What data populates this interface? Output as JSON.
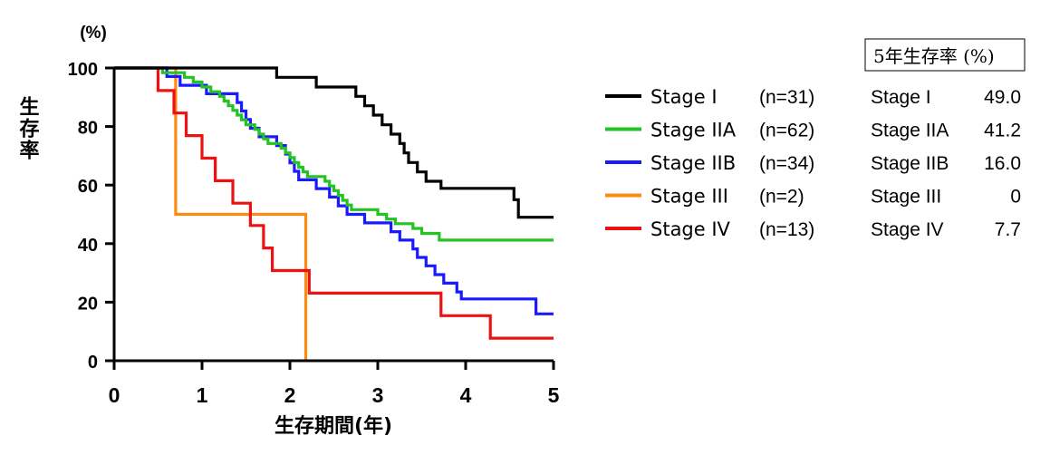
{
  "chart_data": {
    "type": "line",
    "step": true,
    "y_unit_label": "(%)",
    "ylabel": "生存率",
    "xlabel": "生存期間(年)",
    "xlim": [
      0,
      5
    ],
    "ylim": [
      0,
      100
    ],
    "x_ticks": [
      0,
      1,
      2,
      3,
      4,
      5
    ],
    "y_ticks": [
      0,
      20,
      40,
      60,
      80,
      100
    ],
    "grid": false,
    "legend_position": "right",
    "series": [
      {
        "name": "Stage I",
        "n_label": "(n=31)",
        "color": "#000000",
        "points": [
          [
            0,
            100
          ],
          [
            1.85,
            100
          ],
          [
            1.85,
            96.8
          ],
          [
            2.3,
            96.8
          ],
          [
            2.3,
            93.5
          ],
          [
            2.75,
            93.5
          ],
          [
            2.75,
            90.3
          ],
          [
            2.85,
            90.3
          ],
          [
            2.85,
            87.1
          ],
          [
            2.95,
            87.1
          ],
          [
            2.95,
            83.9
          ],
          [
            3.05,
            83.9
          ],
          [
            3.05,
            80.6
          ],
          [
            3.15,
            80.6
          ],
          [
            3.15,
            77.4
          ],
          [
            3.25,
            77.4
          ],
          [
            3.25,
            74.2
          ],
          [
            3.3,
            74.2
          ],
          [
            3.3,
            71.0
          ],
          [
            3.35,
            71.0
          ],
          [
            3.35,
            67.7
          ],
          [
            3.45,
            67.7
          ],
          [
            3.45,
            64.5
          ],
          [
            3.55,
            64.5
          ],
          [
            3.55,
            61.3
          ],
          [
            3.72,
            61.3
          ],
          [
            3.72,
            58.9
          ],
          [
            4.55,
            58.9
          ],
          [
            4.55,
            55.0
          ],
          [
            4.6,
            55.0
          ],
          [
            4.6,
            49.0
          ],
          [
            5.0,
            49.0
          ]
        ]
      },
      {
        "name": "Stage IIA",
        "n_label": "(n=62)",
        "color": "#22c322",
        "points": [
          [
            0,
            100
          ],
          [
            0.55,
            100
          ],
          [
            0.55,
            98.4
          ],
          [
            0.8,
            98.4
          ],
          [
            0.8,
            96.8
          ],
          [
            0.9,
            96.8
          ],
          [
            0.9,
            95.2
          ],
          [
            1.0,
            95.2
          ],
          [
            1.0,
            93.5
          ],
          [
            1.1,
            93.5
          ],
          [
            1.1,
            91.9
          ],
          [
            1.2,
            91.9
          ],
          [
            1.2,
            90.3
          ],
          [
            1.25,
            90.3
          ],
          [
            1.25,
            88.7
          ],
          [
            1.3,
            88.7
          ],
          [
            1.3,
            87.1
          ],
          [
            1.35,
            87.1
          ],
          [
            1.35,
            85.5
          ],
          [
            1.4,
            85.5
          ],
          [
            1.4,
            83.9
          ],
          [
            1.45,
            83.9
          ],
          [
            1.45,
            82.3
          ],
          [
            1.5,
            82.3
          ],
          [
            1.5,
            80.6
          ],
          [
            1.6,
            80.6
          ],
          [
            1.6,
            79.0
          ],
          [
            1.65,
            79.0
          ],
          [
            1.65,
            77.4
          ],
          [
            1.7,
            77.4
          ],
          [
            1.7,
            75.8
          ],
          [
            1.75,
            75.8
          ],
          [
            1.75,
            74.2
          ],
          [
            1.9,
            74.2
          ],
          [
            1.9,
            72.6
          ],
          [
            1.95,
            72.6
          ],
          [
            1.95,
            71.0
          ],
          [
            2.0,
            71.0
          ],
          [
            2.0,
            69.4
          ],
          [
            2.05,
            69.4
          ],
          [
            2.05,
            67.7
          ],
          [
            2.1,
            67.7
          ],
          [
            2.1,
            66.1
          ],
          [
            2.15,
            66.1
          ],
          [
            2.15,
            64.5
          ],
          [
            2.2,
            64.5
          ],
          [
            2.2,
            62.9
          ],
          [
            2.4,
            62.9
          ],
          [
            2.4,
            61.3
          ],
          [
            2.45,
            61.3
          ],
          [
            2.45,
            59.7
          ],
          [
            2.5,
            59.7
          ],
          [
            2.5,
            58.1
          ],
          [
            2.55,
            58.1
          ],
          [
            2.55,
            56.5
          ],
          [
            2.6,
            56.5
          ],
          [
            2.6,
            54.8
          ],
          [
            2.65,
            54.8
          ],
          [
            2.65,
            53.2
          ],
          [
            2.7,
            53.2
          ],
          [
            2.7,
            51.6
          ],
          [
            3.0,
            51.6
          ],
          [
            3.0,
            50.0
          ],
          [
            3.1,
            50.0
          ],
          [
            3.1,
            48.4
          ],
          [
            3.2,
            48.4
          ],
          [
            3.2,
            46.8
          ],
          [
            3.4,
            46.8
          ],
          [
            3.4,
            45.2
          ],
          [
            3.5,
            45.2
          ],
          [
            3.5,
            43.5
          ],
          [
            3.7,
            43.5
          ],
          [
            3.7,
            41.2
          ],
          [
            5.0,
            41.2
          ]
        ]
      },
      {
        "name": "Stage IIB",
        "n_label": "(n=34)",
        "color": "#1a1aff",
        "points": [
          [
            0,
            100
          ],
          [
            0.6,
            100
          ],
          [
            0.6,
            97.1
          ],
          [
            0.75,
            97.1
          ],
          [
            0.75,
            94.1
          ],
          [
            1.05,
            94.1
          ],
          [
            1.05,
            91.2
          ],
          [
            1.4,
            91.2
          ],
          [
            1.4,
            88.2
          ],
          [
            1.45,
            88.2
          ],
          [
            1.45,
            85.3
          ],
          [
            1.5,
            85.3
          ],
          [
            1.5,
            82.4
          ],
          [
            1.55,
            82.4
          ],
          [
            1.55,
            79.4
          ],
          [
            1.65,
            79.4
          ],
          [
            1.65,
            76.5
          ],
          [
            1.85,
            76.5
          ],
          [
            1.85,
            73.5
          ],
          [
            1.95,
            73.5
          ],
          [
            1.95,
            70.6
          ],
          [
            2.0,
            70.6
          ],
          [
            2.0,
            67.6
          ],
          [
            2.05,
            67.6
          ],
          [
            2.05,
            64.7
          ],
          [
            2.1,
            64.7
          ],
          [
            2.1,
            61.8
          ],
          [
            2.3,
            61.8
          ],
          [
            2.3,
            58.8
          ],
          [
            2.45,
            58.8
          ],
          [
            2.45,
            55.9
          ],
          [
            2.55,
            55.9
          ],
          [
            2.55,
            52.9
          ],
          [
            2.65,
            52.9
          ],
          [
            2.65,
            50.0
          ],
          [
            2.85,
            50.0
          ],
          [
            2.85,
            47.1
          ],
          [
            3.15,
            47.1
          ],
          [
            3.15,
            44.1
          ],
          [
            3.25,
            44.1
          ],
          [
            3.25,
            41.2
          ],
          [
            3.4,
            41.2
          ],
          [
            3.4,
            38.2
          ],
          [
            3.45,
            38.2
          ],
          [
            3.45,
            35.3
          ],
          [
            3.55,
            35.3
          ],
          [
            3.55,
            32.4
          ],
          [
            3.65,
            32.4
          ],
          [
            3.65,
            29.4
          ],
          [
            3.75,
            29.4
          ],
          [
            3.75,
            26.5
          ],
          [
            3.9,
            26.5
          ],
          [
            3.9,
            23.5
          ],
          [
            3.95,
            23.5
          ],
          [
            3.95,
            21.1
          ],
          [
            4.8,
            21.1
          ],
          [
            4.8,
            16.0
          ],
          [
            5.0,
            16.0
          ]
        ]
      },
      {
        "name": "Stage III",
        "n_label": "(n=2)",
        "color": "#ff8a10",
        "points": [
          [
            0,
            100
          ],
          [
            0.7,
            100
          ],
          [
            0.7,
            50.0
          ],
          [
            2.18,
            50.0
          ],
          [
            2.18,
            0
          ]
        ]
      },
      {
        "name": "Stage IV",
        "n_label": "(n=13)",
        "color": "#ee1111",
        "points": [
          [
            0,
            100
          ],
          [
            0.5,
            100
          ],
          [
            0.5,
            92.3
          ],
          [
            0.68,
            92.3
          ],
          [
            0.68,
            84.6
          ],
          [
            0.82,
            84.6
          ],
          [
            0.82,
            76.9
          ],
          [
            1.0,
            76.9
          ],
          [
            1.0,
            69.2
          ],
          [
            1.15,
            69.2
          ],
          [
            1.15,
            61.5
          ],
          [
            1.35,
            61.5
          ],
          [
            1.35,
            53.8
          ],
          [
            1.55,
            53.8
          ],
          [
            1.55,
            46.2
          ],
          [
            1.7,
            46.2
          ],
          [
            1.7,
            38.5
          ],
          [
            1.8,
            38.5
          ],
          [
            1.8,
            30.8
          ],
          [
            2.22,
            30.8
          ],
          [
            2.22,
            23.1
          ],
          [
            3.72,
            23.1
          ],
          [
            3.72,
            15.4
          ],
          [
            4.28,
            15.4
          ],
          [
            4.28,
            7.7
          ],
          [
            5.0,
            7.7
          ]
        ]
      }
    ]
  },
  "survival_table": {
    "title": "5年生存率 (%)",
    "rows": [
      {
        "stage": "Stage I",
        "value": "49.0"
      },
      {
        "stage": "Stage IIA",
        "value": "41.2"
      },
      {
        "stage": "Stage IIB",
        "value": "16.0"
      },
      {
        "stage": "Stage III",
        "value": "0"
      },
      {
        "stage": "Stage IV",
        "value": "7.7"
      }
    ]
  }
}
